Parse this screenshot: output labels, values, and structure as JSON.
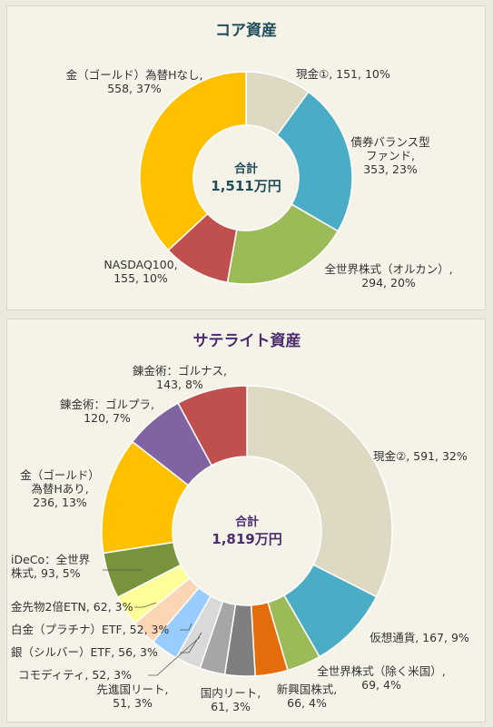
{
  "colors": {
    "core_title": "#1f4e5a",
    "sat_title": "#4b2c6e",
    "leader": "#555555"
  },
  "chart_data": [
    {
      "type": "pie",
      "variant": "donut",
      "title": "コア資産",
      "center_label": "合計",
      "center_value": "1,511万円",
      "categories": [
        "現金①",
        "債券バランス型ファンド",
        "全世界株式（オルカン）",
        "NASDAQ100",
        "金（ゴールド）為替Hなし"
      ],
      "values": [
        151,
        353,
        294,
        155,
        558
      ],
      "percents": [
        10,
        23,
        20,
        10,
        37
      ],
      "colors": [
        "#ddd9c3",
        "#4bacc6",
        "#9bbb59",
        "#c0504d",
        "#ffc000"
      ],
      "labels": [
        [
          "現金①, 151, 10%"
        ],
        [
          "債券バランス型",
          "ファンド,",
          "353, 23%"
        ],
        [
          "全世界株式（オルカン）,",
          "294, 20%"
        ],
        [
          "NASDAQ100,",
          "155, 10%"
        ],
        [
          "金（ゴールド）為替Hなし,",
          "558, 37%"
        ]
      ]
    },
    {
      "type": "pie",
      "variant": "donut",
      "title": "サテライト資産",
      "center_label": "合計",
      "center_value": "1,819万円",
      "categories": [
        "現金②",
        "仮想通貨",
        "全世界株式（除く米国）",
        "新興国株式",
        "国内リート",
        "先進国リート",
        "コモディティ",
        "銀（シルバー）ETF",
        "白金（プラチナ）ETF",
        "金先物2倍ETN",
        "iDeCo：全世界株式",
        "金（ゴールド）為替Hあり",
        "錬金術：ゴルプラ",
        "錬金術：ゴルナス"
      ],
      "values": [
        591,
        167,
        69,
        66,
        61,
        51,
        52,
        56,
        52,
        62,
        93,
        236,
        120,
        143
      ],
      "percents": [
        32,
        9,
        4,
        4,
        3,
        3,
        3,
        3,
        3,
        3,
        5,
        13,
        7,
        8
      ],
      "colors": [
        "#ddd9c3",
        "#4bacc6",
        "#9bbb59",
        "#e46c0a",
        "#7f7f7f",
        "#a6a6a6",
        "#d9d9d9",
        "#99ccff",
        "#fcd5b5",
        "#ffff99",
        "#77933c",
        "#ffc000",
        "#8064a2",
        "#c0504d"
      ],
      "labels": [
        [
          "現金②, 591, 32%"
        ],
        [
          "仮想通貨, 167, 9%"
        ],
        [
          "全世界株式（除く米国）,",
          "69, 4%"
        ],
        [
          "新興国株式,",
          "66, 4%"
        ],
        [
          "国内リート,",
          "61, 3%"
        ],
        [
          "先進国リート,",
          "51, 3%"
        ],
        [
          "コモディティ, 52, 3%"
        ],
        [
          "銀（シルバー）ETF, 56, 3%"
        ],
        [
          "白金（プラチナ）ETF, 52, 3%"
        ],
        [
          "金先物2倍ETN, 62, 3%"
        ],
        [
          "iDeCo：全世界",
          "株式, 93, 5%"
        ],
        [
          "金（ゴールド）",
          "為替Hあり,",
          "236, 13%"
        ],
        [
          "錬金術：ゴルプラ,",
          "120, 7%"
        ],
        [
          "錬金術：ゴルナス,",
          "143, 8%"
        ]
      ]
    }
  ]
}
